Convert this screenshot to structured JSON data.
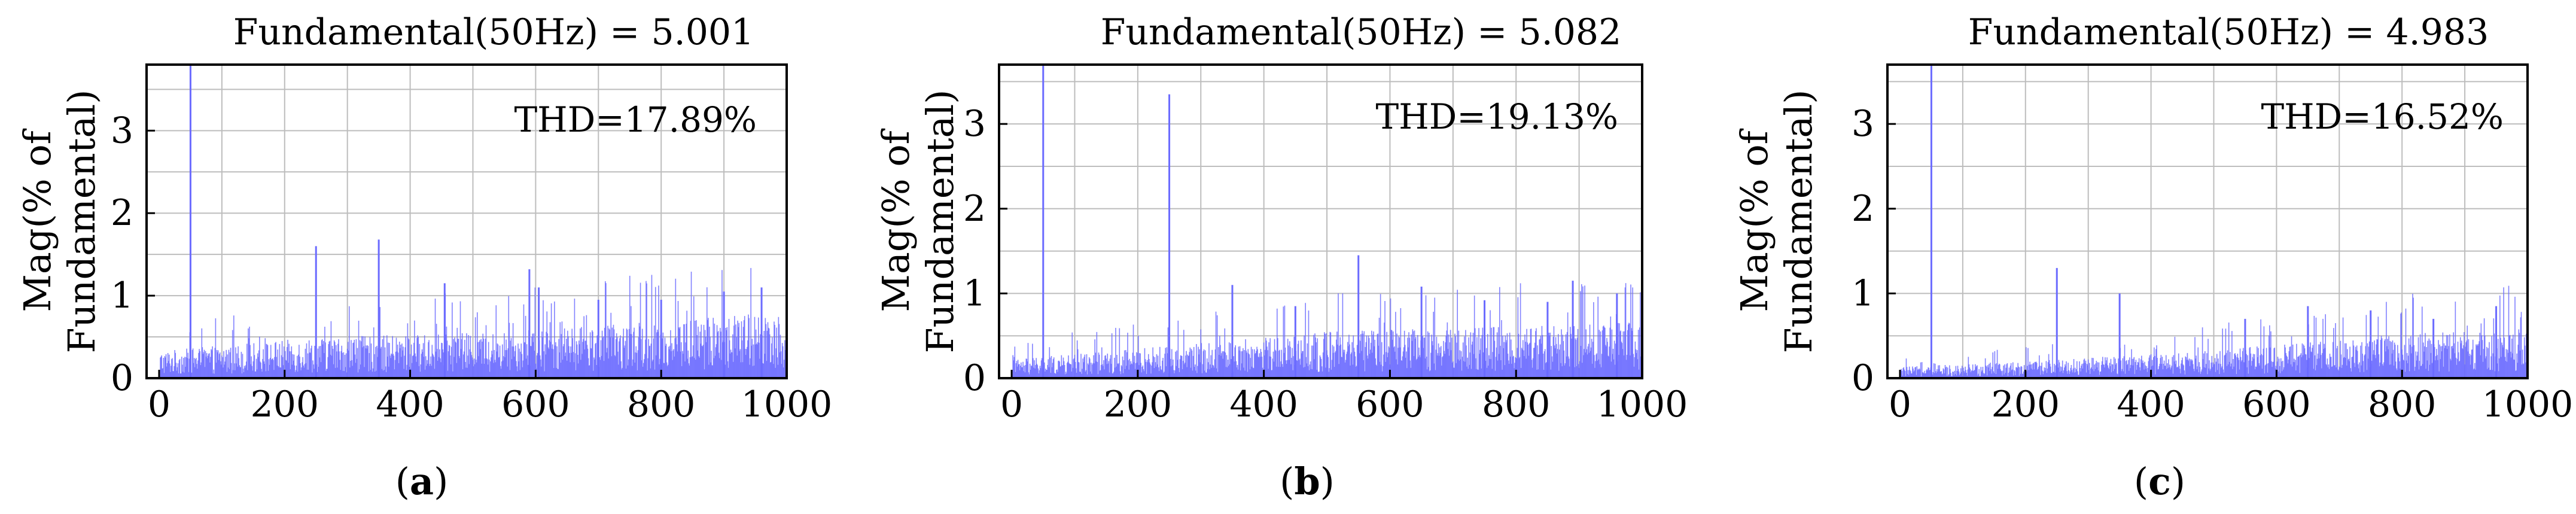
{
  "charts": [
    {
      "title": "Fundamental(50Hz) = 5.001",
      "ylabel_line1": "Mag(% of",
      "ylabel_line2": "Fundamental)",
      "annotation": "THD=17.89%",
      "caption_open": "(",
      "caption_letter": "a",
      "caption_close": ")"
    },
    {
      "title": "Fundamental(50Hz) = 5.082",
      "ylabel_line1": "Mag(% of",
      "ylabel_line2": "Fundamental)",
      "annotation": "THD=19.13%",
      "caption_open": "(",
      "caption_letter": "b",
      "caption_close": ")"
    },
    {
      "title": "Fundamental(50Hz) = 4.983",
      "ylabel_line1": "Mag(% of",
      "ylabel_line2": "Fundamental)",
      "annotation": "THD=16.52%",
      "caption_open": "(",
      "caption_letter": "c",
      "caption_close": ")"
    }
  ],
  "chart_data": [
    {
      "type": "bar",
      "title": "Fundamental(50Hz) = 5.001",
      "ylabel": "Mag(% of Fundamental)",
      "xlabel": "",
      "xlim": [
        -20,
        1000
      ],
      "ylim": [
        0,
        3.8
      ],
      "x_ticks": [
        0,
        200,
        400,
        600,
        800,
        1000
      ],
      "y_ticks": [
        0,
        1,
        2,
        3
      ],
      "grid": true,
      "bar_color": "#6b6bff",
      "annotation": "THD=17.89%",
      "noise_band": [
        [
          0,
          0.3
        ],
        [
          250,
          0.45
        ],
        [
          500,
          0.5
        ],
        [
          750,
          0.6
        ],
        [
          1000,
          0.75
        ]
      ],
      "peaks": [
        [
          50,
          3.8
        ],
        [
          250,
          1.6
        ],
        [
          350,
          1.68
        ],
        [
          455,
          1.15
        ],
        [
          590,
          1.32
        ],
        [
          605,
          1.1
        ],
        [
          700,
          0.95
        ],
        [
          800,
          0.95
        ],
        [
          900,
          1.05
        ],
        [
          960,
          1.1
        ]
      ]
    },
    {
      "type": "bar",
      "title": "Fundamental(50Hz) = 5.082",
      "ylabel": "Mag(% of Fundamental)",
      "xlabel": "",
      "xlim": [
        -20,
        1000
      ],
      "ylim": [
        0,
        3.7
      ],
      "x_ticks": [
        0,
        200,
        400,
        600,
        800,
        1000
      ],
      "y_ticks": [
        0,
        1,
        2,
        3
      ],
      "grid": true,
      "bar_color": "#6b6bff",
      "annotation": "THD=19.13%",
      "noise_band": [
        [
          0,
          0.2
        ],
        [
          250,
          0.35
        ],
        [
          500,
          0.5
        ],
        [
          750,
          0.55
        ],
        [
          1000,
          0.6
        ]
      ],
      "peaks": [
        [
          50,
          3.7
        ],
        [
          250,
          3.35
        ],
        [
          350,
          1.1
        ],
        [
          450,
          0.85
        ],
        [
          550,
          1.45
        ],
        [
          650,
          1.08
        ],
        [
          750,
          0.92
        ],
        [
          850,
          0.9
        ],
        [
          890,
          1.15
        ],
        [
          960,
          1.0
        ]
      ]
    },
    {
      "type": "bar",
      "title": "Fundamental(50Hz) = 4.983",
      "ylabel": "Mag(% of Fundamental)",
      "xlabel": "",
      "xlim": [
        -20,
        1000
      ],
      "ylim": [
        0,
        3.7
      ],
      "x_ticks": [
        0,
        200,
        400,
        600,
        800,
        1000
      ],
      "y_ticks": [
        0,
        1,
        2,
        3
      ],
      "grid": true,
      "bar_color": "#6b6bff",
      "annotation": "THD=16.52%",
      "noise_band": [
        [
          0,
          0.12
        ],
        [
          250,
          0.2
        ],
        [
          500,
          0.3
        ],
        [
          750,
          0.45
        ],
        [
          1000,
          0.55
        ]
      ],
      "peaks": [
        [
          50,
          3.7
        ],
        [
          250,
          1.3
        ],
        [
          350,
          1.0
        ],
        [
          550,
          0.7
        ],
        [
          650,
          0.85
        ],
        [
          750,
          0.8
        ],
        [
          850,
          0.7
        ],
        [
          950,
          0.85
        ]
      ]
    }
  ]
}
